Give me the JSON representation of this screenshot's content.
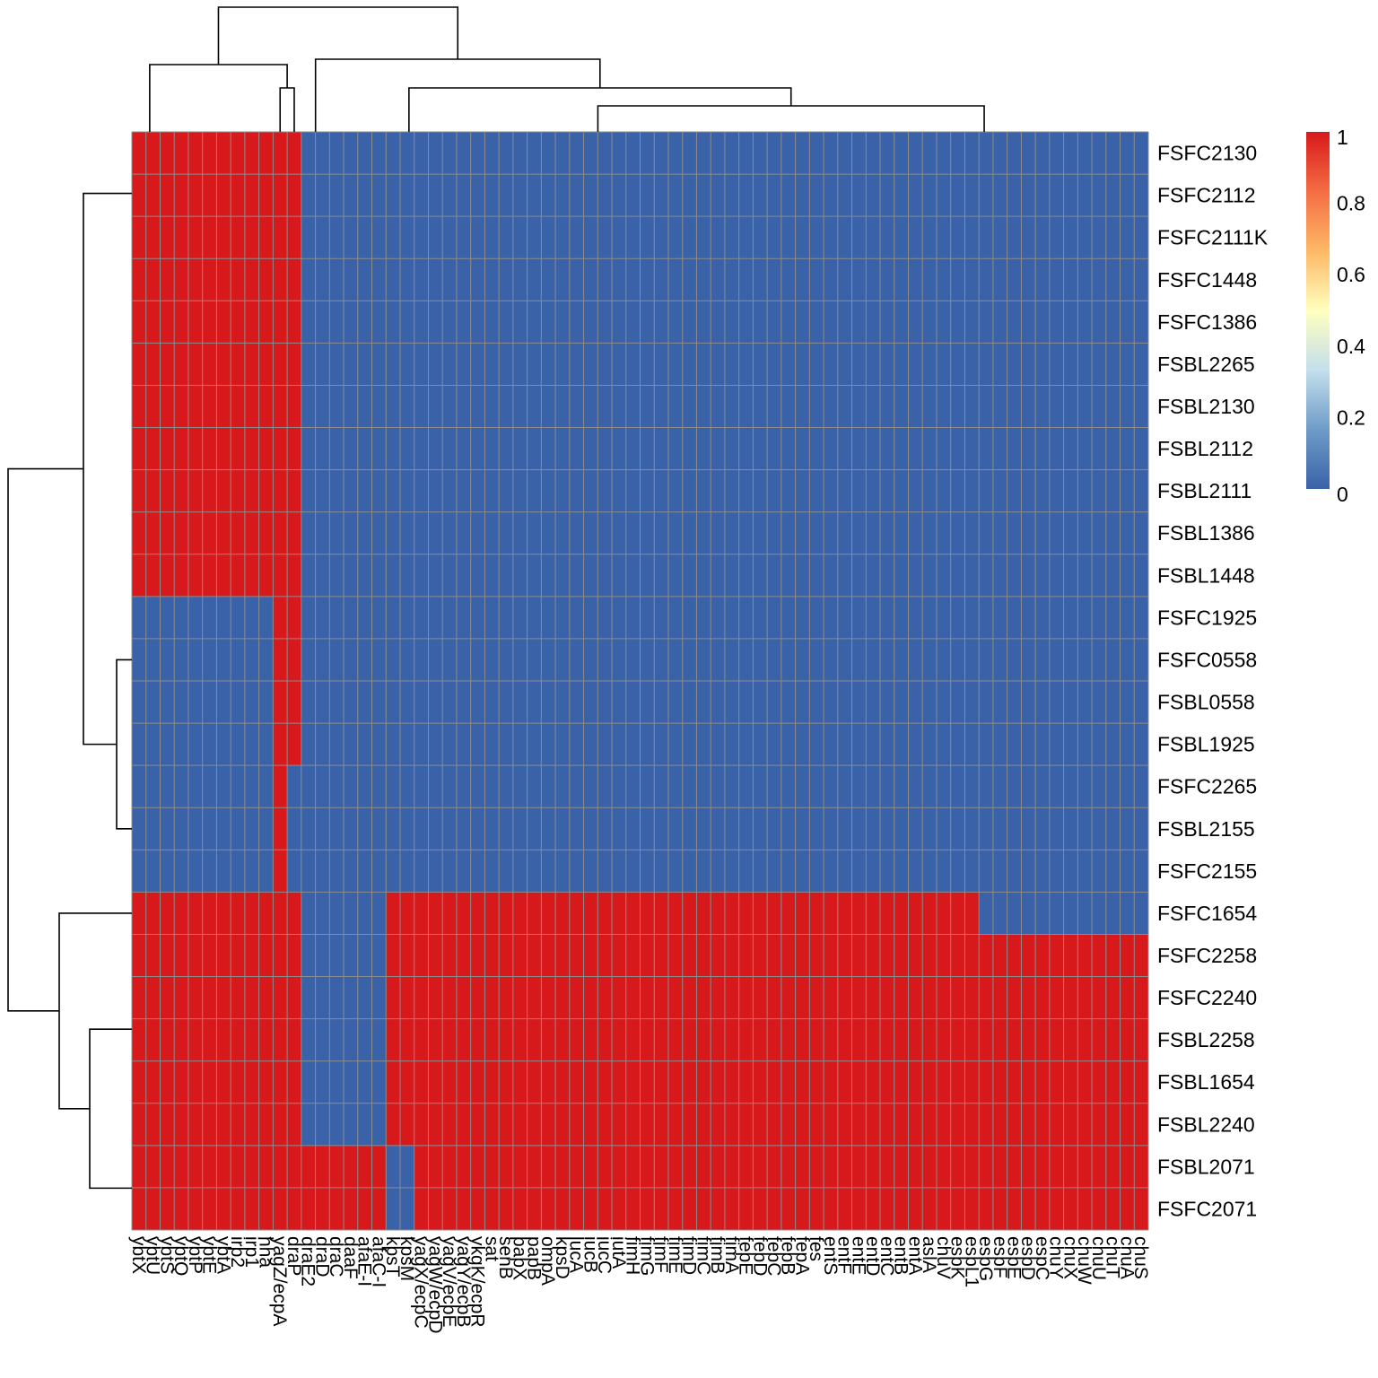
{
  "chart_data": {
    "type": "heatmap",
    "title": "",
    "colors": {
      "high": "#d7191c",
      "low": "#3a62a8",
      "grid": "#8c8c8c",
      "scale": [
        "#3a62a8",
        "#6e9cc8",
        "#c4dfec",
        "#ffffbf",
        "#fdb865",
        "#f46d43",
        "#d7191c"
      ]
    },
    "legend": {
      "position": "top-right",
      "ticks": [
        "1",
        "0.8",
        "0.6",
        "0.4",
        "0.2",
        "0"
      ],
      "range": [
        0,
        1
      ]
    },
    "columns": [
      "ybtX",
      "ybtU",
      "ybtS",
      "ybtQ",
      "ybtP",
      "ybtE",
      "ybtA",
      "irp2",
      "irp1",
      "hha",
      "yagZ/ecpA",
      "draP",
      "draE2",
      "draD",
      "draC",
      "daaF",
      "afaE-I",
      "afaC-I",
      "kpsT",
      "kpsM",
      "yagX/ecpC",
      "yagW/ecpD",
      "yagV/ecpE",
      "yagY/ecpB",
      "ykgK/ecpR",
      "sat",
      "senB",
      "papX",
      "papB",
      "ompA",
      "kpsD",
      "lucA",
      "iucB",
      "iucC",
      "iutA",
      "fimH",
      "fimG",
      "fimF",
      "fimE",
      "fimD",
      "fimC",
      "fimB",
      "fimA",
      "fepE",
      "fepD",
      "fepC",
      "fepB",
      "fepA",
      "fes",
      "entS",
      "entF",
      "entE",
      "entD",
      "entC",
      "entB",
      "entA",
      "aslA",
      "chuV",
      "espK",
      "espL1",
      "espG",
      "espF",
      "espE",
      "espD",
      "espC",
      "chuY",
      "chuX",
      "chuW",
      "chuU",
      "chuT",
      "chuA",
      "chuS"
    ],
    "rows": [
      "FSFC2130",
      "FSFC2112",
      "FSFC2111K",
      "FSFC1448",
      "FSFC1386",
      "FSBL2265",
      "FSBL2130",
      "FSBL2112",
      "FSBL2111",
      "FSBL1386",
      "FSBL1448",
      "FSFC1925",
      "FSFC0558",
      "FSBL0558",
      "FSBL1925",
      "FSFC2265",
      "FSBL2155",
      "FSFC2155",
      "FSFC1654",
      "FSFC2258",
      "FSFC2240",
      "FSBL2258",
      "FSBL1654",
      "FSBL2240",
      "FSBL2071",
      "FSFC2071"
    ],
    "matrix": [
      "111111111111000000000000000000000000000000000000000000000000000000000000",
      "111111111111000000000000000000000000000000000000000000000000000000000000",
      "111111111111000000000000000000000000000000000000000000000000000000000000",
      "111111111111000000000000000000000000000000000000000000000000000000000000",
      "111111111111000000000000000000000000000000000000000000000000000000000000",
      "111111111111000000000000000000000000000000000000000000000000000000000000",
      "111111111111000000000000000000000000000000000000000000000000000000000000",
      "111111111111000000000000000000000000000000000000000000000000000000000000",
      "111111111111000000000000000000000000000000000000000000000000000000000000",
      "111111111111000000000000000000000000000000000000000000000000000000000000",
      "111111111111000000000000000000000000000000000000000000000000000000000000",
      "000000000011000000000000000000000000000000000000000000000000000000000000",
      "000000000011000000000000000000000000000000000000000000000000000000000000",
      "000000000011000000000000000000000000000000000000000000000000000000000000",
      "000000000011000000000000000000000000000000000000000000000000000000000000",
      "000000000010000000000000000000000000000000000000000000000000000000000000",
      "000000000010000000000000000000000000000000000000000000000000000000000000",
      "000000000010000000000000000000000000000000000000000000000000000000000000",
      "111111111111000000111111111111111111111111111111111111111111000000000000",
      "111111111111000000111111111111111111111111111111111111111111111111111111",
      "111111111111000000111111111111111111111111111111111111111111111111111111",
      "111111111111000000111111111111111111111111111111111111111111111111111111",
      "111111111111000000111111111111111111111111111111111111111111111111111111",
      "111111111111000000111111111111111111111111111111111111111111111111111111",
      "111111111111111111001111111111111111111111111111111111111111111111111111",
      "111111111111111111001111111111111111111111111111111111111111111111111111"
    ]
  }
}
